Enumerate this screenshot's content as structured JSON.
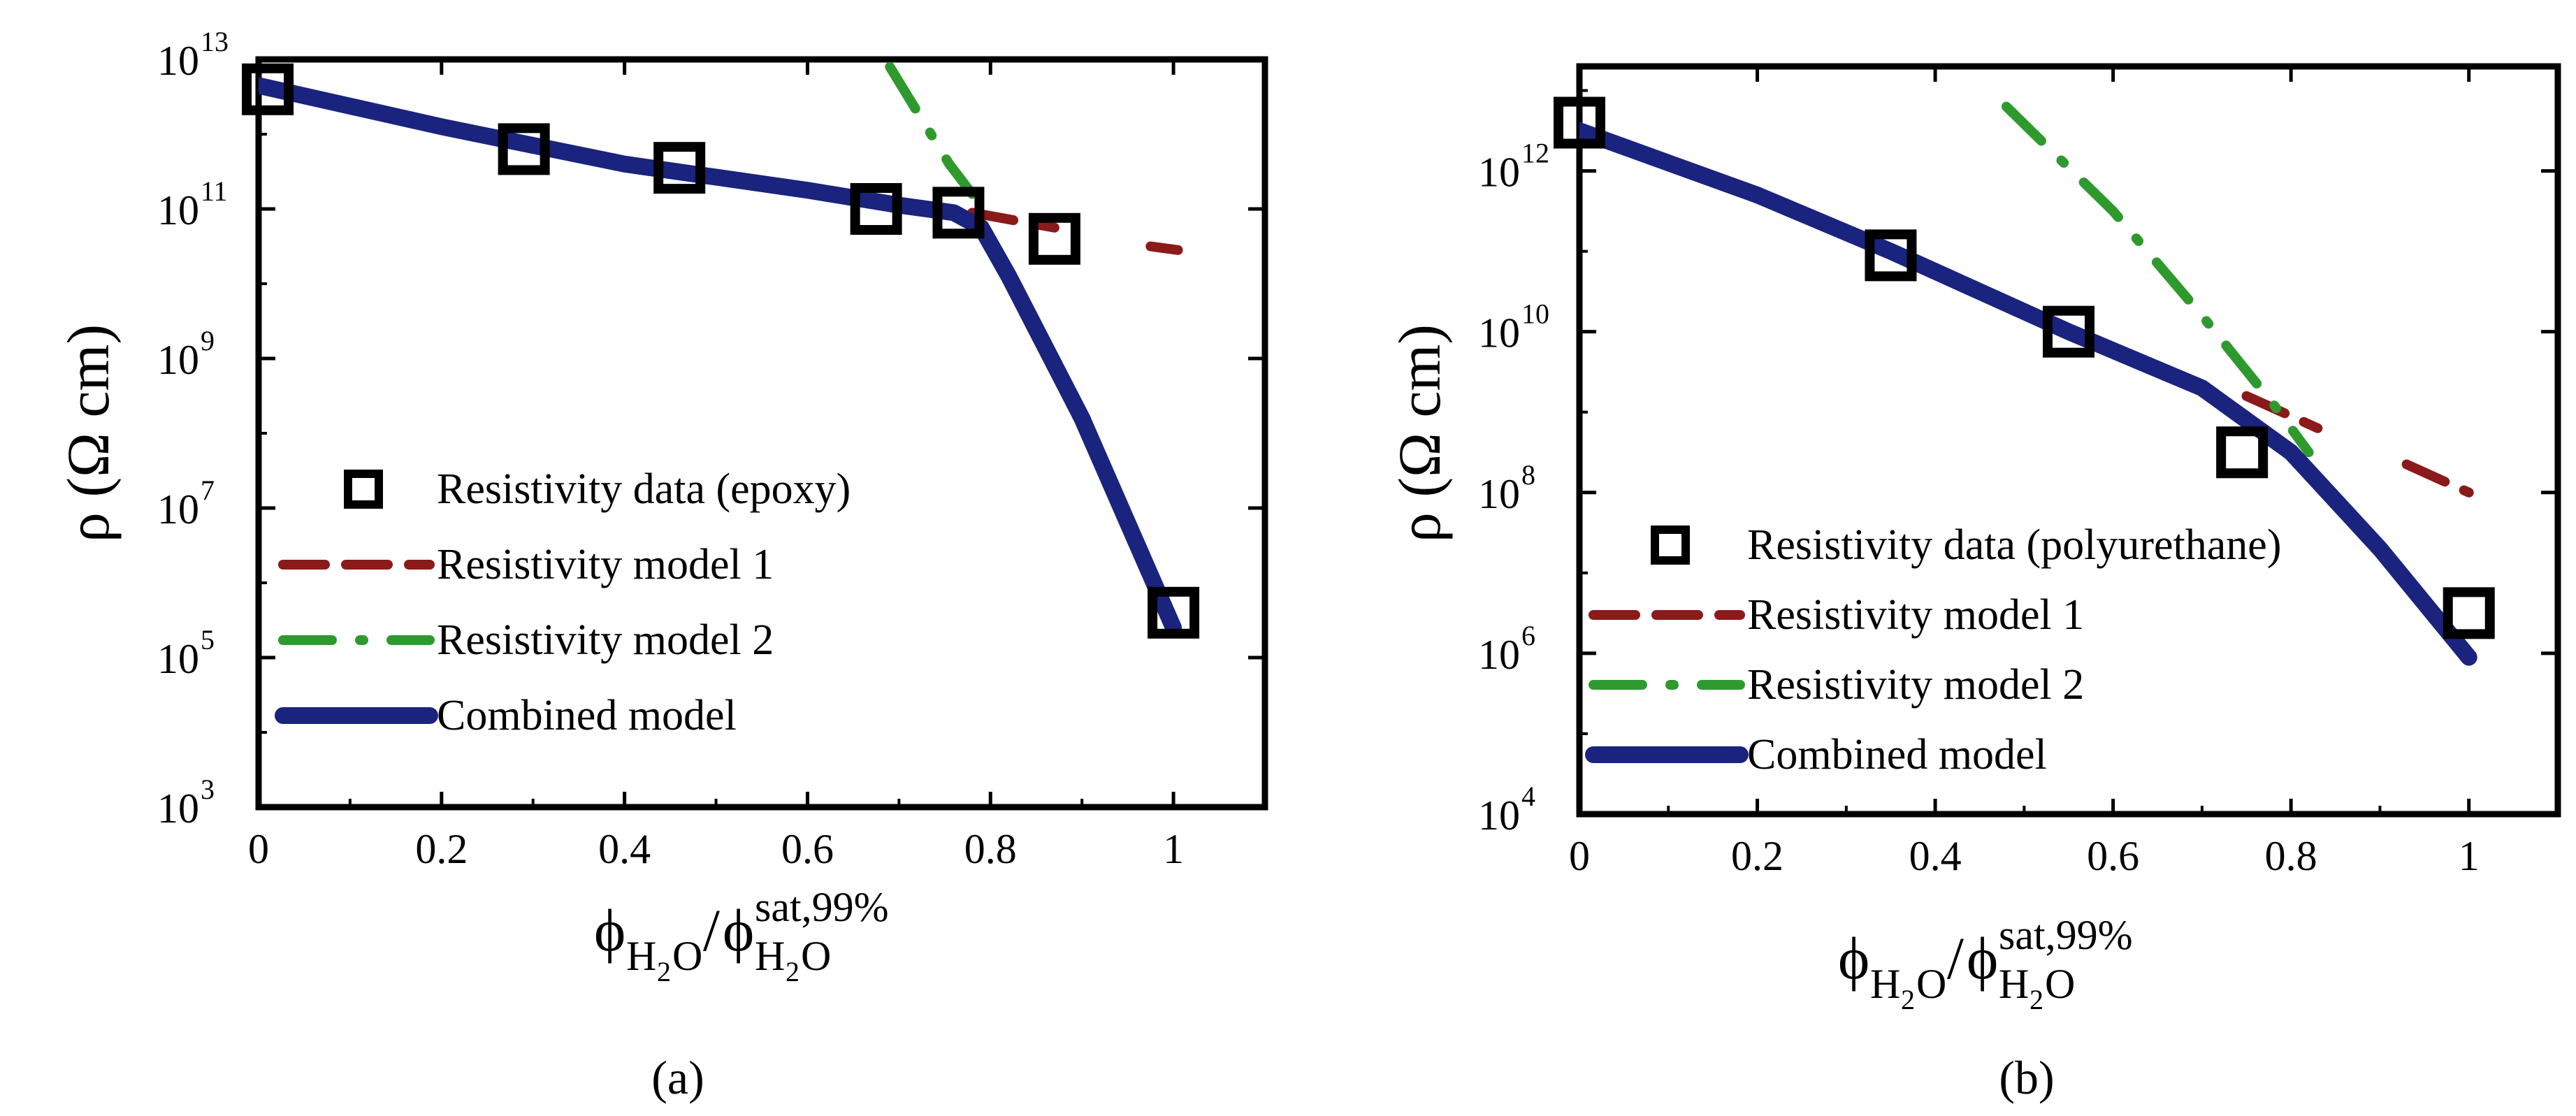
{
  "chart_data": [
    {
      "type": "scatter",
      "panel_label": "(a)",
      "xlabel": {
        "main": "ϕ",
        "sub1": "H",
        "sub1b": "2",
        "sub1c": "O",
        "slash": "/",
        "main2": "ϕ",
        "sup2": "sat,99%",
        "sub2": "H",
        "sub2b": "2",
        "sub2c": "O"
      },
      "ylabel": "ρ (Ω cm)",
      "xlim": [
        0,
        1.1
      ],
      "ylim_log10": [
        3,
        13
      ],
      "x_ticks": [
        0,
        0.2,
        0.4,
        0.6,
        0.8,
        1
      ],
      "x_tick_labels": [
        "0",
        "0.2",
        "0.4",
        "0.6",
        "0.8",
        "1"
      ],
      "y_ticks_exp": [
        3,
        5,
        7,
        9,
        11,
        13
      ],
      "y_tick_base": "10",
      "y_tick_exp_labels": [
        "3",
        "5",
        "7",
        "9",
        "11",
        "13"
      ],
      "legend": [
        {
          "label": "Resistivity data (epoxy)",
          "kind": "marker"
        },
        {
          "label": "Resistivity model 1",
          "kind": "line",
          "color": "#8b1a1a"
        },
        {
          "label": "Resistivity model 2",
          "kind": "line",
          "color": "#2e9a2e"
        },
        {
          "label": "Combined model",
          "kind": "line",
          "color": "#1a237e"
        }
      ],
      "series": [
        {
          "name": "Resistivity data (epoxy)",
          "kind": "marker",
          "x": [
            0.01,
            0.29,
            0.46,
            0.675,
            0.765,
            0.87,
            1.0
          ],
          "y_log10": [
            12.6,
            11.8,
            11.55,
            11.0,
            10.95,
            10.6,
            5.6
          ]
        },
        {
          "name": "Resistivity model 1",
          "kind": "dash",
          "color": "#8b1a1a",
          "x": [
            0.78,
            0.87
          ],
          "y_log10": [
            10.95,
            10.75
          ]
        },
        {
          "name": "Resistivity model 1 (tail)",
          "kind": "dash",
          "color": "#8b1a1a",
          "x": [
            0.975,
            1.005
          ],
          "y_log10": [
            10.5,
            10.45
          ]
        },
        {
          "name": "Resistivity model 2",
          "kind": "dashdot",
          "color": "#2e9a2e",
          "x": [
            0.69,
            0.725,
            0.755,
            0.78
          ],
          "y_log10": [
            12.9,
            12.2,
            11.6,
            11.2
          ]
        },
        {
          "name": "Combined model",
          "kind": "solid",
          "color": "#1a237e",
          "x": [
            0,
            0.2,
            0.4,
            0.6,
            0.7,
            0.76,
            0.79,
            0.82,
            0.9,
            1.0
          ],
          "y_log10": [
            12.65,
            12.1,
            11.6,
            11.25,
            11.05,
            10.95,
            10.75,
            10.1,
            8.2,
            5.4
          ]
        }
      ]
    },
    {
      "type": "scatter",
      "panel_label": "(b)",
      "xlabel": {
        "main": "ϕ",
        "sub1": "H",
        "sub1b": "2",
        "sub1c": "O",
        "slash": "/",
        "main2": "ϕ",
        "sup2": "sat,99%",
        "sub2": "H",
        "sub2b": "2",
        "sub2c": "O"
      },
      "ylabel": "ρ (Ω cm)",
      "xlim": [
        0,
        1.1
      ],
      "ylim_log10": [
        4,
        13.3
      ],
      "x_ticks": [
        0,
        0.2,
        0.4,
        0.6,
        0.8,
        1
      ],
      "x_tick_labels": [
        "0",
        "0.2",
        "0.4",
        "0.6",
        "0.8",
        "1"
      ],
      "y_ticks_exp": [
        4,
        6,
        8,
        10,
        12
      ],
      "y_tick_base": "10",
      "y_tick_exp_labels": [
        "4",
        "6",
        "8",
        "10",
        "12"
      ],
      "legend": [
        {
          "label": "Resistivity data (polyurethane)",
          "kind": "marker"
        },
        {
          "label": "Resistivity model 1",
          "kind": "line",
          "color": "#8b1a1a"
        },
        {
          "label": "Resistivity model 2",
          "kind": "line",
          "color": "#2e9a2e"
        },
        {
          "label": "Combined model",
          "kind": "line",
          "color": "#1a237e"
        }
      ],
      "series": [
        {
          "name": "Resistivity data (polyurethane)",
          "kind": "marker",
          "x": [
            0.0,
            0.35,
            0.55,
            0.745,
            1.0
          ],
          "y_log10": [
            12.6,
            10.95,
            10.0,
            8.5,
            6.5
          ]
        },
        {
          "name": "Resistivity model 1",
          "kind": "dash",
          "color": "#8b1a1a",
          "x": [
            0.75,
            0.83
          ],
          "y_log10": [
            9.2,
            8.8
          ]
        },
        {
          "name": "Resistivity model 1 (tail)",
          "kind": "dash",
          "color": "#8b1a1a",
          "x": [
            0.93,
            1.0
          ],
          "y_log10": [
            8.35,
            8.0
          ]
        },
        {
          "name": "Resistivity model 2",
          "kind": "dashdot",
          "color": "#2e9a2e",
          "x": [
            0.48,
            0.6,
            0.7,
            0.78,
            0.82
          ],
          "y_log10": [
            12.8,
            11.5,
            10.2,
            9.1,
            8.5
          ]
        },
        {
          "name": "Combined model",
          "kind": "solid",
          "color": "#1a237e",
          "x": [
            0,
            0.2,
            0.35,
            0.55,
            0.7,
            0.8,
            0.9,
            1.0
          ],
          "y_log10": [
            12.5,
            11.7,
            11.0,
            10.0,
            9.3,
            8.5,
            7.3,
            5.95
          ]
        }
      ]
    }
  ]
}
